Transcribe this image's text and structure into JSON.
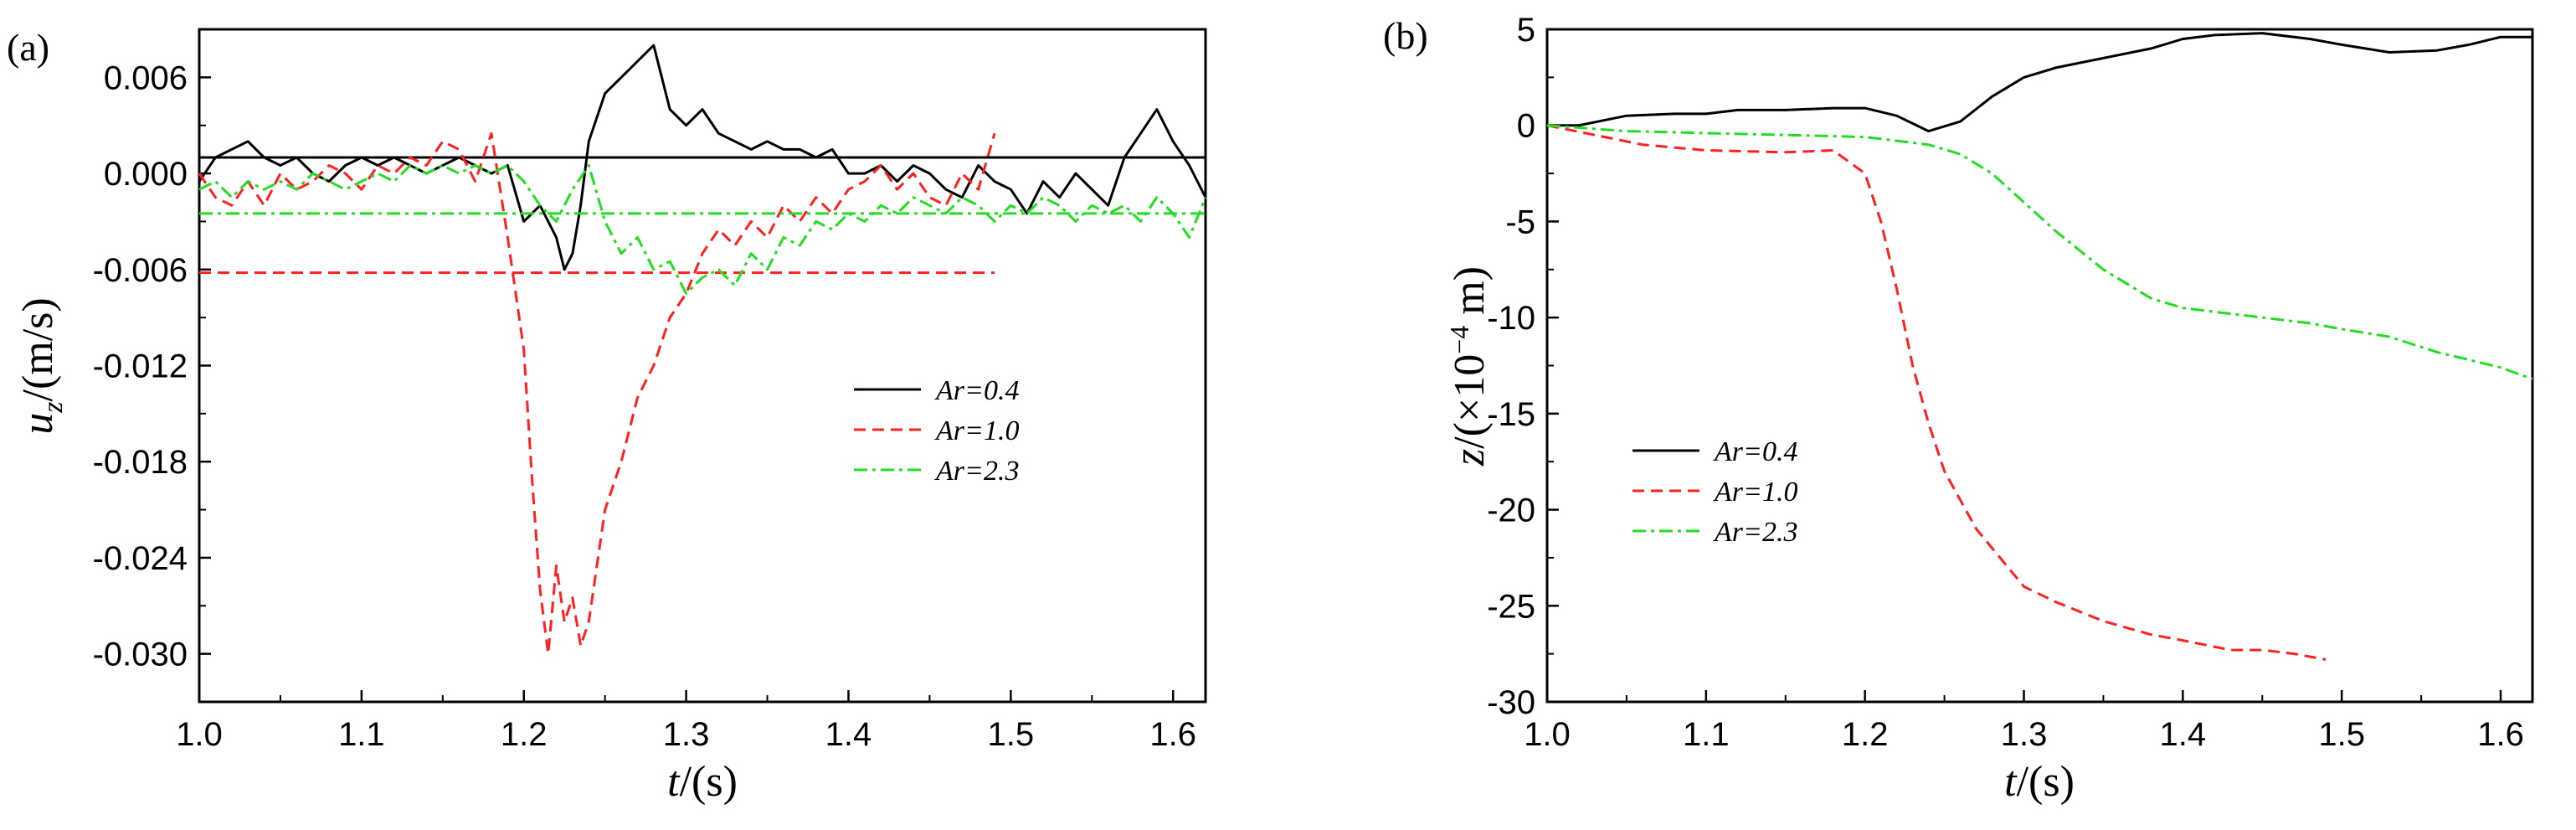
{
  "chart_data": [
    {
      "panel": "(a)",
      "type": "line",
      "xlabel": "t/(s)",
      "ylabel": "u_z/(m/s)",
      "xlim": [
        1.0,
        1.62
      ],
      "ylim": [
        -0.033,
        0.009
      ],
      "xticks": [
        "1.0",
        "1.1",
        "1.2",
        "1.3",
        "1.4",
        "1.5",
        "1.6"
      ],
      "yticks": [
        "0.006",
        "0.000",
        "-0.006",
        "-0.012",
        "-0.018",
        "-0.024",
        "-0.030"
      ],
      "legend_position": "center-right",
      "series": [
        {
          "name": "Ar=0.4",
          "color": "#000000",
          "dash": "solid",
          "mean": 0.001,
          "x": [
            1.0,
            1.01,
            1.02,
            1.03,
            1.04,
            1.05,
            1.06,
            1.07,
            1.08,
            1.09,
            1.1,
            1.11,
            1.12,
            1.13,
            1.14,
            1.15,
            1.16,
            1.17,
            1.18,
            1.19,
            1.2,
            1.21,
            1.22,
            1.225,
            1.23,
            1.235,
            1.24,
            1.25,
            1.26,
            1.27,
            1.275,
            1.28,
            1.285,
            1.29,
            1.3,
            1.31,
            1.32,
            1.33,
            1.34,
            1.35,
            1.36,
            1.37,
            1.38,
            1.39,
            1.4,
            1.41,
            1.42,
            1.43,
            1.44,
            1.45,
            1.46,
            1.47,
            1.48,
            1.49,
            1.5,
            1.51,
            1.52,
            1.53,
            1.54,
            1.55,
            1.56,
            1.57,
            1.58,
            1.59,
            1.6,
            1.61,
            1.62
          ],
          "y": [
            -0.0005,
            0.001,
            0.0015,
            0.002,
            0.001,
            0.0005,
            0.001,
            0.0,
            -0.0005,
            0.0005,
            0.001,
            0.0005,
            0.001,
            0.0005,
            0.0,
            0.0005,
            0.001,
            0.0005,
            0.0,
            0.0005,
            -0.003,
            -0.002,
            -0.004,
            -0.006,
            -0.005,
            -0.002,
            0.002,
            0.005,
            0.006,
            0.007,
            0.0075,
            0.008,
            0.006,
            0.004,
            0.003,
            0.004,
            0.0025,
            0.002,
            0.0015,
            0.002,
            0.0015,
            0.0015,
            0.001,
            0.0015,
            0.0,
            0.0,
            0.0005,
            -0.0005,
            0.0005,
            0.0,
            -0.001,
            -0.0015,
            0.0005,
            -0.0005,
            -0.001,
            -0.0025,
            -0.0005,
            -0.0015,
            0.0,
            -0.001,
            -0.002,
            0.001,
            0.0025,
            0.004,
            0.002,
            0.0005,
            -0.0015
          ]
        },
        {
          "name": "Ar=1.0",
          "color": "#ff2020",
          "dash": "dashed",
          "mean": -0.0062,
          "x": [
            1.0,
            1.01,
            1.02,
            1.03,
            1.04,
            1.05,
            1.06,
            1.07,
            1.08,
            1.09,
            1.1,
            1.11,
            1.12,
            1.13,
            1.14,
            1.15,
            1.16,
            1.17,
            1.18,
            1.19,
            1.2,
            1.205,
            1.21,
            1.215,
            1.22,
            1.225,
            1.23,
            1.235,
            1.24,
            1.25,
            1.26,
            1.27,
            1.28,
            1.29,
            1.3,
            1.31,
            1.32,
            1.33,
            1.34,
            1.35,
            1.36,
            1.37,
            1.38,
            1.39,
            1.4,
            1.41,
            1.42,
            1.43,
            1.44,
            1.45,
            1.46,
            1.47,
            1.48,
            1.49
          ],
          "y": [
            0.0,
            -0.0015,
            -0.002,
            -0.0005,
            -0.002,
            0.0,
            -0.001,
            -0.0005,
            0.0005,
            0.0,
            -0.001,
            0.0005,
            0.0,
            0.001,
            0.0005,
            0.002,
            0.0015,
            -0.0005,
            0.0025,
            -0.004,
            -0.011,
            -0.019,
            -0.026,
            -0.03,
            -0.0245,
            -0.028,
            -0.0265,
            -0.0295,
            -0.028,
            -0.021,
            -0.018,
            -0.014,
            -0.012,
            -0.009,
            -0.0075,
            -0.005,
            -0.0035,
            -0.0045,
            -0.003,
            -0.004,
            -0.002,
            -0.003,
            -0.0015,
            -0.0025,
            -0.001,
            -0.0005,
            0.0005,
            -0.001,
            0.0,
            -0.0015,
            -0.002,
            0.0,
            -0.001,
            0.0025
          ]
        },
        {
          "name": "Ar=2.3",
          "color": "#22dd22",
          "dash": "dashdot",
          "mean": -0.0025,
          "x": [
            1.0,
            1.01,
            1.02,
            1.03,
            1.04,
            1.05,
            1.06,
            1.07,
            1.08,
            1.09,
            1.1,
            1.11,
            1.12,
            1.13,
            1.14,
            1.15,
            1.16,
            1.17,
            1.18,
            1.19,
            1.2,
            1.21,
            1.22,
            1.23,
            1.24,
            1.25,
            1.26,
            1.27,
            1.28,
            1.29,
            1.3,
            1.31,
            1.32,
            1.33,
            1.34,
            1.35,
            1.36,
            1.37,
            1.38,
            1.39,
            1.4,
            1.41,
            1.42,
            1.43,
            1.44,
            1.45,
            1.46,
            1.47,
            1.48,
            1.49,
            1.5,
            1.51,
            1.52,
            1.53,
            1.54,
            1.55,
            1.56,
            1.57,
            1.58,
            1.59,
            1.6,
            1.61,
            1.62
          ],
          "y": [
            -0.001,
            -0.0005,
            -0.0015,
            -0.0005,
            -0.001,
            -0.0005,
            -0.001,
            0.0,
            -0.0005,
            -0.001,
            -0.0005,
            0.0,
            -0.0005,
            0.0005,
            0.0,
            0.0005,
            0.0,
            0.0005,
            0.0,
            0.0005,
            -0.0005,
            -0.002,
            -0.003,
            -0.001,
            0.0005,
            -0.003,
            -0.005,
            -0.004,
            -0.006,
            -0.0055,
            -0.0075,
            -0.0065,
            -0.006,
            -0.007,
            -0.005,
            -0.006,
            -0.004,
            -0.0045,
            -0.003,
            -0.0035,
            -0.0025,
            -0.003,
            -0.002,
            -0.0025,
            -0.0015,
            -0.002,
            -0.0025,
            -0.0015,
            -0.002,
            -0.003,
            -0.002,
            -0.0025,
            -0.0015,
            -0.002,
            -0.003,
            -0.002,
            -0.0025,
            -0.002,
            -0.003,
            -0.0015,
            -0.0025,
            -0.004,
            -0.0015
          ]
        }
      ]
    },
    {
      "panel": "(b)",
      "type": "line",
      "xlabel": "t/(s)",
      "ylabel": "z/(×10⁻⁴ m)",
      "xlim": [
        1.0,
        1.62
      ],
      "ylim": [
        -30,
        5
      ],
      "xticks": [
        "1.0",
        "1.1",
        "1.2",
        "1.3",
        "1.4",
        "1.5",
        "1.6"
      ],
      "yticks": [
        "5",
        "0",
        "-5",
        "-10",
        "-15",
        "-20",
        "-25",
        "-30"
      ],
      "legend_position": "left",
      "series": [
        {
          "name": "Ar=0.4",
          "color": "#000000",
          "dash": "solid",
          "x": [
            1.0,
            1.02,
            1.05,
            1.08,
            1.1,
            1.12,
            1.15,
            1.18,
            1.2,
            1.22,
            1.24,
            1.26,
            1.28,
            1.3,
            1.32,
            1.35,
            1.38,
            1.4,
            1.42,
            1.45,
            1.48,
            1.5,
            1.53,
            1.56,
            1.58,
            1.6,
            1.62
          ],
          "y": [
            0.0,
            0.0,
            0.5,
            0.6,
            0.6,
            0.8,
            0.8,
            0.9,
            0.9,
            0.5,
            -0.3,
            0.2,
            1.5,
            2.5,
            3.0,
            3.5,
            4.0,
            4.5,
            4.7,
            4.8,
            4.5,
            4.2,
            3.8,
            3.9,
            4.2,
            4.6,
            4.6
          ]
        },
        {
          "name": "Ar=1.0",
          "color": "#ff2020",
          "dash": "dashed",
          "x": [
            1.0,
            1.03,
            1.06,
            1.1,
            1.15,
            1.18,
            1.2,
            1.21,
            1.22,
            1.23,
            1.24,
            1.25,
            1.27,
            1.29,
            1.3,
            1.32,
            1.35,
            1.38,
            1.4,
            1.43,
            1.45,
            1.47,
            1.49
          ],
          "y": [
            0.0,
            -0.5,
            -1.0,
            -1.3,
            -1.4,
            -1.3,
            -2.5,
            -5.0,
            -8.5,
            -12.5,
            -15.5,
            -18.0,
            -21.0,
            -23.0,
            -24.0,
            -24.8,
            -25.8,
            -26.5,
            -26.8,
            -27.3,
            -27.3,
            -27.5,
            -27.8
          ]
        },
        {
          "name": "Ar=2.3",
          "color": "#22dd22",
          "dash": "dashdot",
          "x": [
            1.0,
            1.05,
            1.1,
            1.15,
            1.2,
            1.22,
            1.24,
            1.26,
            1.28,
            1.3,
            1.32,
            1.35,
            1.38,
            1.4,
            1.43,
            1.45,
            1.48,
            1.5,
            1.53,
            1.56,
            1.6,
            1.62
          ],
          "y": [
            0.0,
            -0.3,
            -0.4,
            -0.5,
            -0.6,
            -0.8,
            -1.0,
            -1.5,
            -2.5,
            -4.0,
            -5.5,
            -7.5,
            -9.0,
            -9.5,
            -9.8,
            -10.0,
            -10.3,
            -10.6,
            -11.0,
            -11.8,
            -12.6,
            -13.2
          ]
        }
      ]
    }
  ]
}
